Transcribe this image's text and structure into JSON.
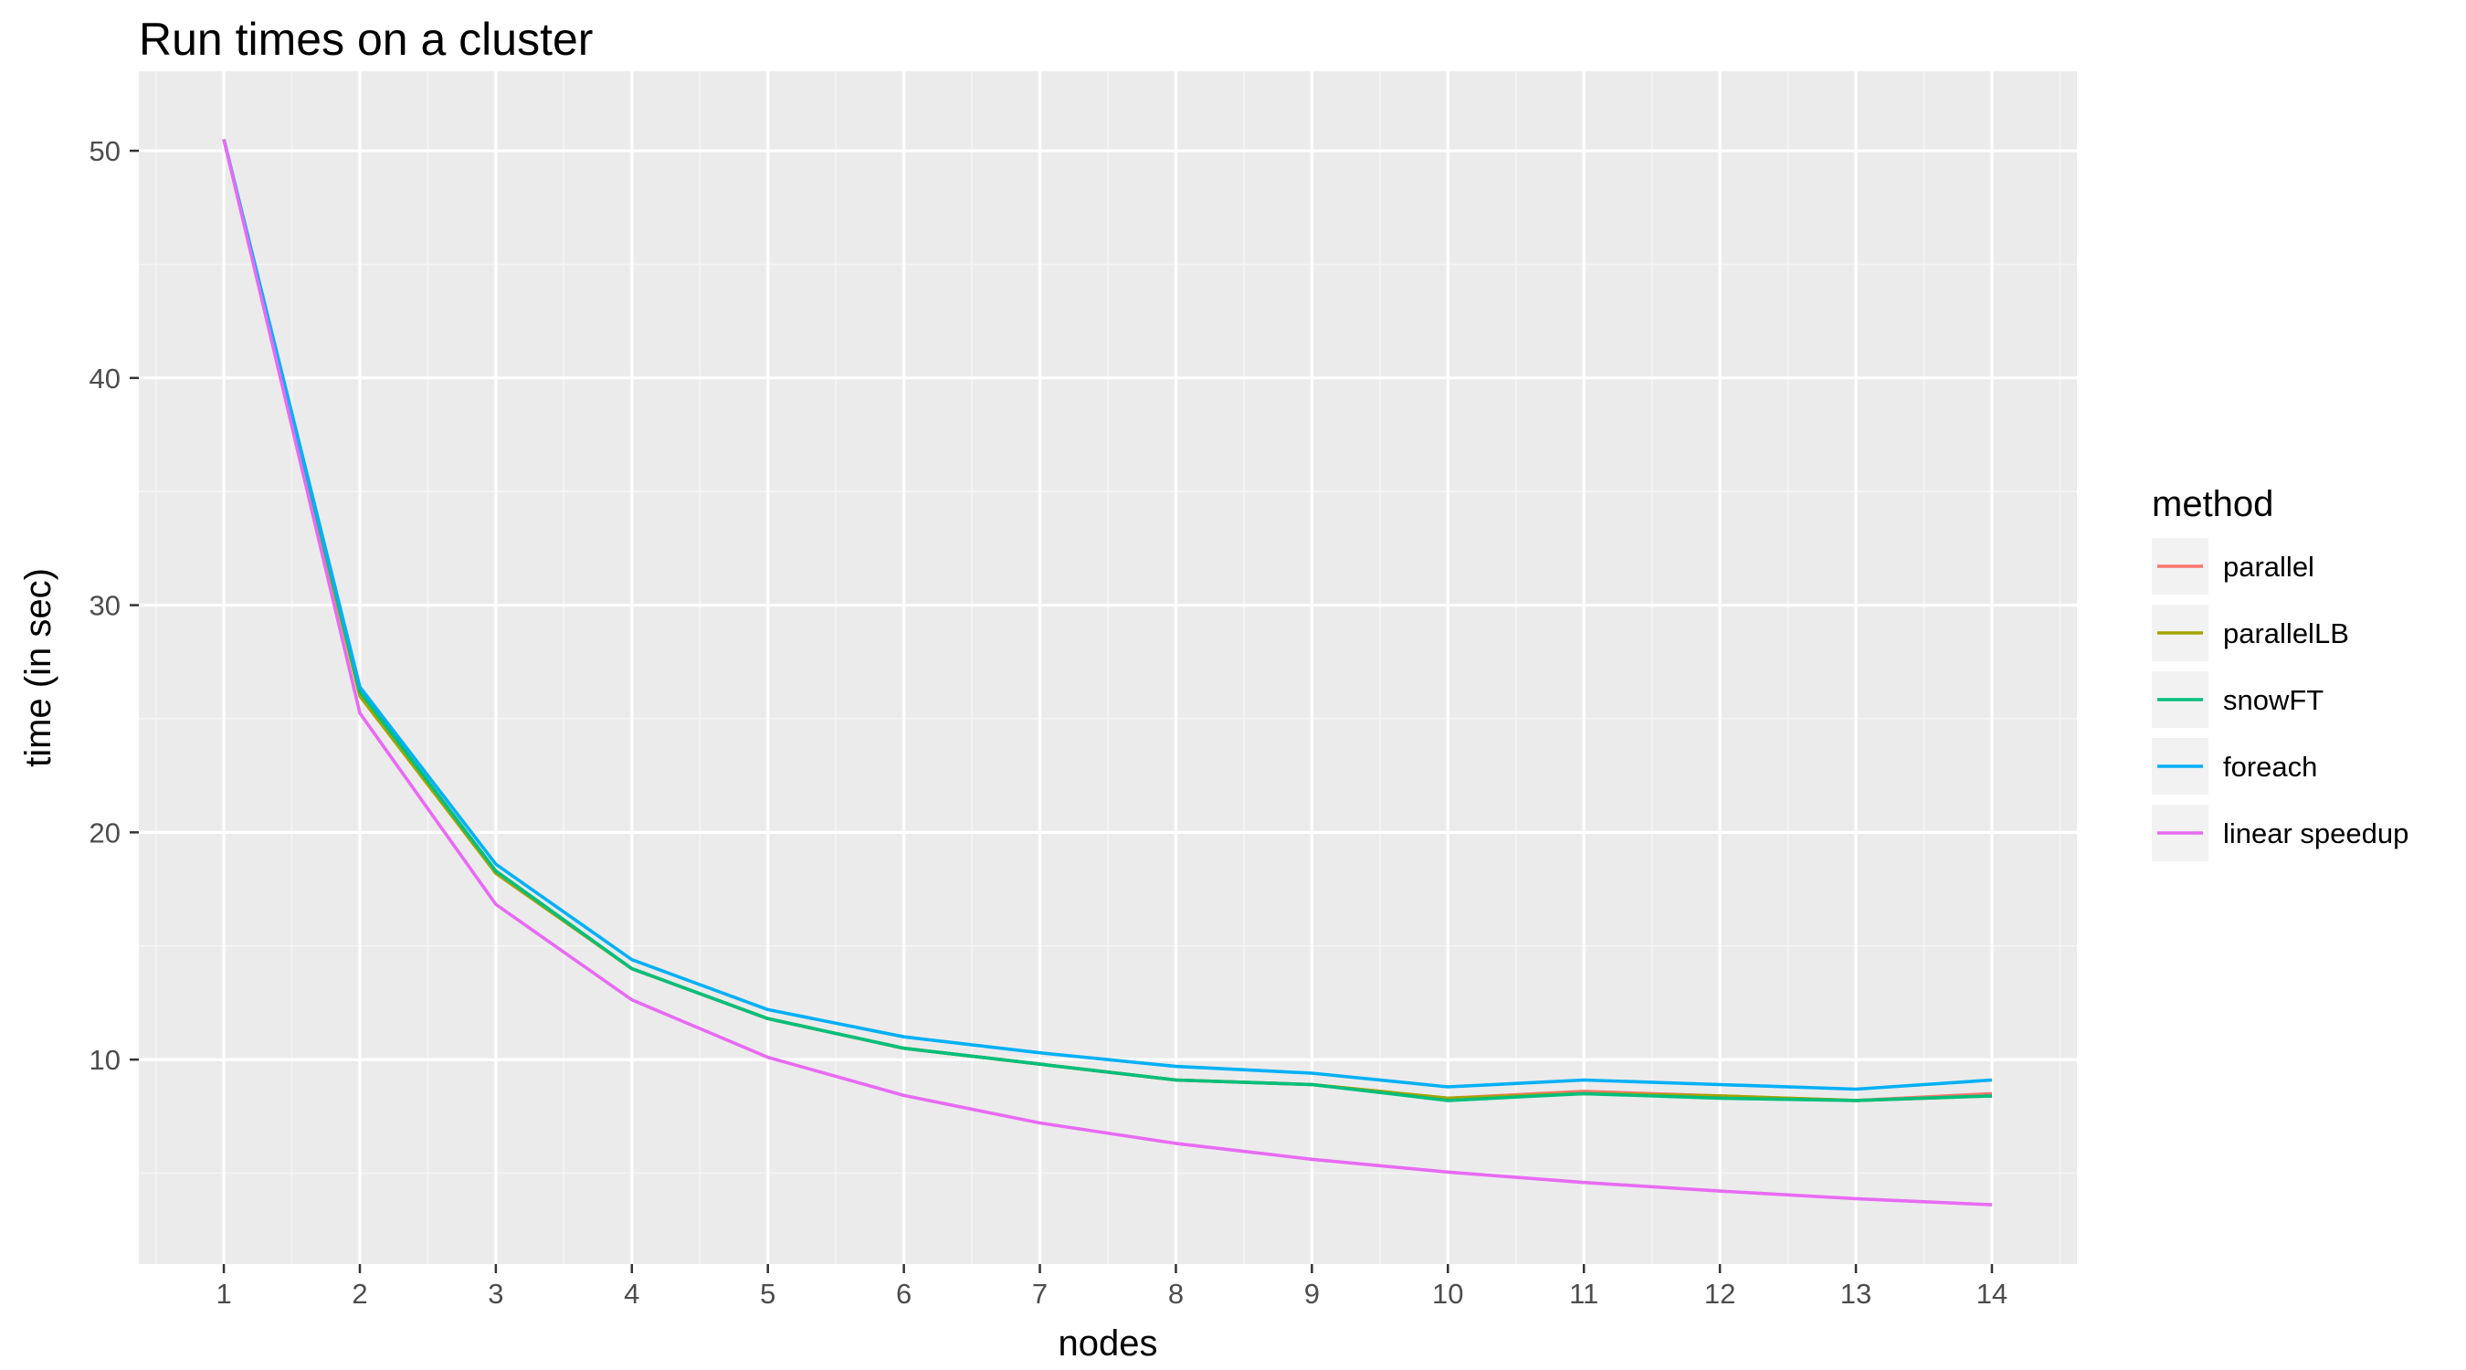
{
  "chart_data": {
    "type": "line",
    "title": "Run times on a cluster",
    "xlabel": "nodes",
    "ylabel": "time (in sec)",
    "x": [
      1,
      2,
      3,
      4,
      5,
      6,
      7,
      8,
      9,
      10,
      11,
      12,
      13,
      14
    ],
    "x_tick_labels": [
      "1",
      "2",
      "3",
      "4",
      "5",
      "6",
      "7",
      "8",
      "9",
      "10",
      "11",
      "12",
      "13",
      "14"
    ],
    "xlim": [
      0.375,
      14.625
    ],
    "ylim": [
      1.0,
      53.5
    ],
    "y_ticks": [
      10,
      20,
      30,
      40,
      50
    ],
    "y_tick_labels": [
      "10",
      "20",
      "30",
      "40",
      "50"
    ],
    "grid": true,
    "legend": {
      "title": "method",
      "position": "right"
    },
    "series": [
      {
        "name": "parallel",
        "color": "#F8766D",
        "values": [
          50.5,
          26.1,
          18.2,
          14.0,
          11.8,
          10.5,
          9.8,
          9.1,
          8.9,
          8.3,
          8.6,
          8.4,
          8.2,
          8.5
        ]
      },
      {
        "name": "parallelLB",
        "color": "#A3A500",
        "values": [
          50.5,
          26.0,
          18.2,
          14.0,
          11.8,
          10.5,
          9.8,
          9.1,
          8.9,
          8.3,
          8.5,
          8.4,
          8.2,
          8.4
        ]
      },
      {
        "name": "snowFT",
        "color": "#00BF7D",
        "values": [
          50.5,
          26.2,
          18.3,
          14.0,
          11.8,
          10.5,
          9.8,
          9.1,
          8.9,
          8.2,
          8.5,
          8.3,
          8.2,
          8.4
        ]
      },
      {
        "name": "foreach",
        "color": "#00B0F6",
        "values": [
          50.5,
          26.4,
          18.6,
          14.4,
          12.2,
          11.0,
          10.3,
          9.7,
          9.4,
          8.8,
          9.1,
          8.9,
          8.7,
          9.1
        ]
      },
      {
        "name": "linear speedup",
        "color": "#E76BF3",
        "values": [
          50.5,
          25.25,
          16.83,
          12.63,
          10.1,
          8.42,
          7.21,
          6.31,
          5.61,
          5.05,
          4.59,
          4.21,
          3.88,
          3.61
        ]
      }
    ]
  }
}
